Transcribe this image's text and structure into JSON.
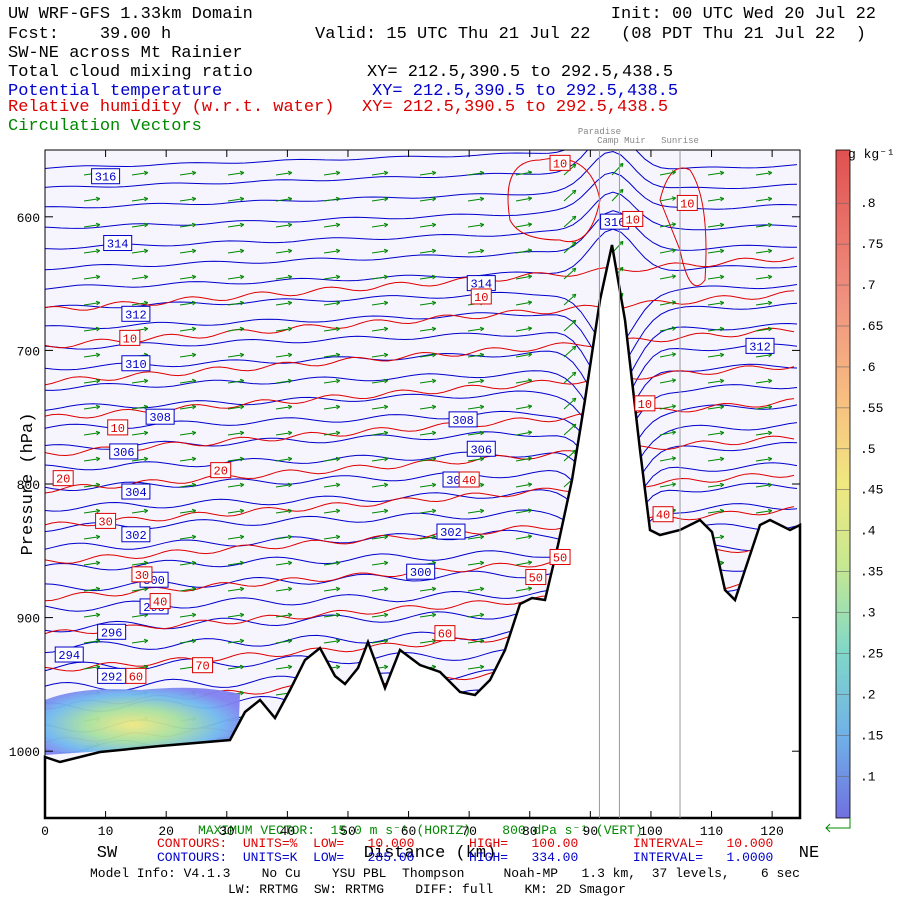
{
  "header": {
    "title": "UW WRF-GFS 1.33km Domain",
    "init": "Init: 00 UTC Wed 20 Jul 22",
    "fcst": "Fcst:    39.00 h",
    "valid": "Valid: 15 UTC Thu 21 Jul 22   (08 PDT Thu 21 Jul 22  )",
    "section": "SW-NE across Mt Rainier",
    "fields": [
      {
        "name": "Total cloud mixing ratio",
        "xy": "XY= 212.5,390.5 to 292.5,438.5",
        "color": "#000000"
      },
      {
        "name": "Potential temperature",
        "xy": "XY= 212.5,390.5 to 292.5,438.5",
        "color": "#0000cc"
      },
      {
        "name": "Relative humidity (w.r.t. water)",
        "xy": "XY= 212.5,390.5 to 292.5,438.5",
        "color": "#dd0000"
      },
      {
        "name": "Circulation Vectors",
        "color": "#008800"
      }
    ]
  },
  "chart_data": {
    "type": "cross-section",
    "xlabel": "Distance (km)",
    "ylabel": "Pressure (hPa)",
    "xlim": [
      0,
      124.6
    ],
    "xticks": [
      0,
      10,
      20,
      30,
      40,
      50,
      60,
      70,
      80,
      90,
      100,
      110,
      120
    ],
    "ylim": [
      1050,
      550
    ],
    "yticks": [
      600,
      700,
      800,
      900,
      1000
    ],
    "left_end": "SW",
    "right_end": "NE",
    "sites": [
      {
        "name": "Paradise",
        "x": 91.5
      },
      {
        "name": "Camp Muir",
        "x": 94.8
      },
      {
        "name": "Sunrise",
        "x": 104.8
      }
    ],
    "theta_color": "#0000cc",
    "rh_color": "#dd0000",
    "theta_labels": [
      {
        "value": 316,
        "x": 10,
        "p": 570
      },
      {
        "value": 314,
        "x": 12,
        "p": 620
      },
      {
        "value": 312,
        "x": 15,
        "p": 673
      },
      {
        "value": 310,
        "x": 15,
        "p": 710
      },
      {
        "value": 308,
        "x": 19,
        "p": 750
      },
      {
        "value": 306,
        "x": 13,
        "p": 776
      },
      {
        "value": 304,
        "x": 15,
        "p": 806
      },
      {
        "value": 302,
        "x": 15,
        "p": 838
      },
      {
        "value": 300,
        "x": 18,
        "p": 872
      },
      {
        "value": 298,
        "x": 18,
        "p": 892
      },
      {
        "value": 296,
        "x": 11,
        "p": 911
      },
      {
        "value": 294,
        "x": 4,
        "p": 928
      },
      {
        "value": 292,
        "x": 11,
        "p": 944
      },
      {
        "value": 314,
        "x": 72,
        "p": 650
      },
      {
        "value": 308,
        "x": 69,
        "p": 752
      },
      {
        "value": 306,
        "x": 72,
        "p": 774
      },
      {
        "value": 304,
        "x": 68,
        "p": 797
      },
      {
        "value": 302,
        "x": 67,
        "p": 836
      },
      {
        "value": 300,
        "x": 62,
        "p": 866
      },
      {
        "value": 312,
        "x": 118,
        "p": 697
      },
      {
        "value": 316,
        "x": 94,
        "p": 604
      }
    ],
    "rh_labels": [
      {
        "value": 10,
        "x": 85,
        "p": 560
      },
      {
        "value": 10,
        "x": 106,
        "p": 590
      },
      {
        "value": 10,
        "x": 72,
        "p": 660
      },
      {
        "value": 10,
        "x": 14,
        "p": 691
      },
      {
        "value": 10,
        "x": 99,
        "p": 740
      },
      {
        "value": 10,
        "x": 12,
        "p": 758
      },
      {
        "value": 10,
        "x": 97,
        "p": 602
      },
      {
        "value": 20,
        "x": 3,
        "p": 796
      },
      {
        "value": 20,
        "x": 29,
        "p": 790
      },
      {
        "value": 30,
        "x": 10,
        "p": 828
      },
      {
        "value": 30,
        "x": 16,
        "p": 868
      },
      {
        "value": 40,
        "x": 19,
        "p": 888
      },
      {
        "value": 40,
        "x": 70,
        "p": 797
      },
      {
        "value": 40,
        "x": 102,
        "p": 823
      },
      {
        "value": 50,
        "x": 85,
        "p": 855
      },
      {
        "value": 50,
        "x": 81,
        "p": 870
      },
      {
        "value": 60,
        "x": 66,
        "p": 912
      },
      {
        "value": 60,
        "x": 15,
        "p": 944
      },
      {
        "value": 70,
        "x": 26,
        "p": 936
      }
    ],
    "colorbar": {
      "units": "g kg⁻¹",
      "lim": [
        0.049,
        0.865
      ],
      "ticks": [
        {
          "value": 0.1,
          "label": ".1"
        },
        {
          "value": 0.15,
          "label": ".15"
        },
        {
          "value": 0.2,
          "label": ".2"
        },
        {
          "value": 0.25,
          "label": ".25"
        },
        {
          "value": 0.3,
          "label": ".3"
        },
        {
          "value": 0.35,
          "label": ".35"
        },
        {
          "value": 0.4,
          "label": ".4"
        },
        {
          "value": 0.45,
          "label": ".45"
        },
        {
          "value": 0.5,
          "label": ".5"
        },
        {
          "value": 0.55,
          "label": ".55"
        },
        {
          "value": 0.6,
          "label": ".6"
        },
        {
          "value": 0.65,
          "label": ".65"
        },
        {
          "value": 0.7,
          "label": ".7"
        },
        {
          "value": 0.75,
          "label": ".75"
        },
        {
          "value": 0.8,
          "label": ".8"
        }
      ]
    }
  },
  "footer": {
    "vector": "MAXIMUM VECTOR:  15.0 m s⁻¹ (HORIZ)    800 dPa s⁻¹ (VERT)",
    "rh_contours": "CONTOURS:  UNITS=%  LOW=   10.000       HIGH=   100.00       INTERVAL=   10.000",
    "theta_contours": "CONTOURS:  UNITS=K  LOW=   285.00       HIGH=   334.00       INTERVAL=   1.0000",
    "model": "Model Info: V4.1.3    No Cu    YSU PBL  Thompson     Noah-MP   1.3 km,  37 levels,    6 sec",
    "physics": "LW: RRTMG  SW: RRTMG    DIFF: full    KM: 2D Smagor"
  }
}
